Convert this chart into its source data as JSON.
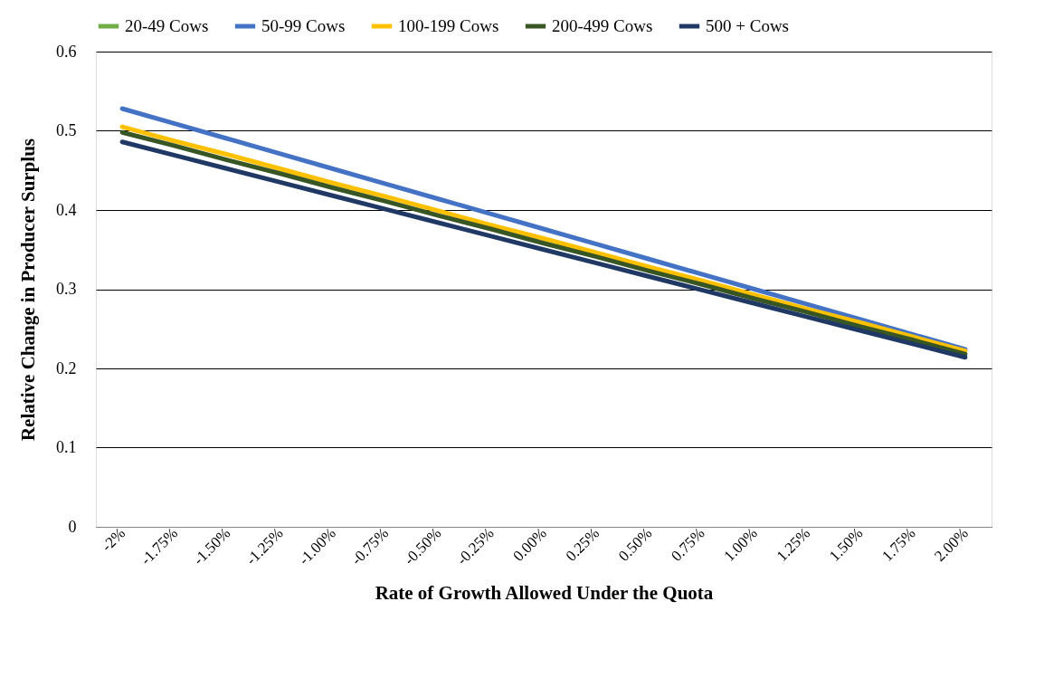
{
  "chart_data": {
    "type": "line",
    "xlabel": "Rate of Growth Allowed Under the Quota",
    "ylabel": "Relative Change in Producer Surplus",
    "categories": [
      "-2%",
      "-1.75%",
      "-1.50%",
      "-1.25%",
      "-1.00%",
      "-0.75%",
      "-0.50%",
      "-0.25%",
      "0.00%",
      "0.25%",
      "0.50%",
      "0.75%",
      "1.00%",
      "1.25%",
      "1.50%",
      "1.75%",
      "2.00%"
    ],
    "series": [
      {
        "name": "20-49 Cows",
        "color": "#70ad47",
        "values": [
          null,
          null,
          null,
          null,
          null,
          null,
          null,
          null,
          null,
          null,
          null,
          null,
          null,
          null,
          null,
          null,
          null
        ]
      },
      {
        "name": "50-99 Cows",
        "color": "#4472c4",
        "values": [
          0.528,
          0.509,
          0.49,
          0.471,
          0.452,
          0.433,
          0.414,
          0.395,
          0.376,
          0.357,
          0.338,
          0.319,
          0.3,
          0.281,
          0.262,
          0.243,
          0.224
        ]
      },
      {
        "name": "100-199 Cows",
        "color": "#ffc000",
        "values": [
          0.505,
          0.487,
          0.47,
          0.452,
          0.434,
          0.417,
          0.399,
          0.381,
          0.364,
          0.346,
          0.328,
          0.311,
          0.293,
          0.275,
          0.258,
          0.24,
          0.222
        ]
      },
      {
        "name": "200-499 Cows",
        "color": "#375623",
        "values": [
          0.498,
          0.481,
          0.463,
          0.446,
          0.428,
          0.411,
          0.393,
          0.376,
          0.358,
          0.341,
          0.323,
          0.306,
          0.288,
          0.271,
          0.253,
          0.236,
          0.218
        ]
      },
      {
        "name": "500 + Cows",
        "color": "#203864",
        "values": [
          0.486,
          0.469,
          0.452,
          0.435,
          0.418,
          0.401,
          0.384,
          0.367,
          0.35,
          0.333,
          0.316,
          0.299,
          0.282,
          0.265,
          0.248,
          0.231,
          0.214
        ]
      }
    ],
    "ylim": [
      0,
      0.6
    ],
    "yticks": [
      0,
      0.1,
      0.2,
      0.3,
      0.4,
      0.5,
      0.6
    ],
    "grid": "y",
    "legend": "top",
    "marker": "none",
    "line_style": "solid"
  }
}
